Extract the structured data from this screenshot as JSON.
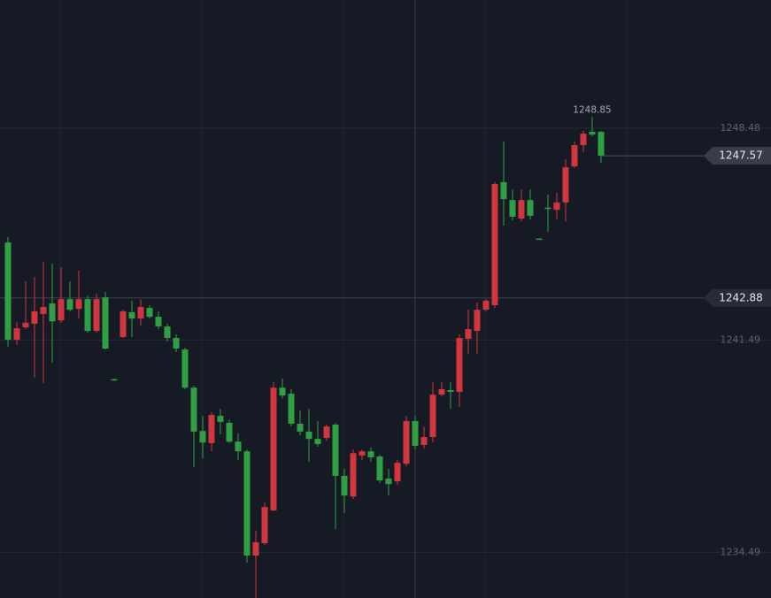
{
  "chart_data": {
    "type": "candlestick",
    "open": [
      1244.71,
      1241.5,
      1241.91,
      1242.03,
      1242.35,
      1242.7,
      1242.14,
      1242.84,
      1242.52,
      1242.84,
      1241.79,
      1242.9,
      1240.2,
      1241.59,
      1242.41,
      1242.2,
      1242.55,
      1242.26,
      1241.94,
      1241.56,
      1241.18,
      1239.92,
      1238.49,
      1238.09,
      1238.99,
      1238.76,
      1238.14,
      1237.82,
      1234.38,
      1234.79,
      1235.87,
      1239.92,
      1239.72,
      1238.73,
      1238.47,
      1238.23,
      1238.26,
      1238.7,
      1237.01,
      1236.33,
      1237.68,
      1237.82,
      1237.65,
      1236.92,
      1236.83,
      1237.41,
      1238.82,
      1238.03,
      1238.29,
      1239.69,
      1239.84,
      1239.78,
      1241.53,
      1241.79,
      1242.49,
      1242.64,
      1246.7,
      1246.11,
      1245.5,
      1246.11,
      1244.84,
      1245.86,
      1245.79,
      1246.03,
      1247.22,
      1247.92,
      1248.36,
      1248.36
    ],
    "high": [
      1244.89,
      1242.08,
      1243.43,
      1243.57,
      1244.07,
      1244.01,
      1243.89,
      1243.43,
      1243.78,
      1242.96,
      1243.02,
      1243.08,
      1240.22,
      1242.49,
      1242.79,
      1242.84,
      1242.64,
      1242.44,
      1242.03,
      1241.68,
      1241.24,
      1239.98,
      1238.99,
      1239.11,
      1239.22,
      1238.87,
      1238.41,
      1237.88,
      1235.2,
      1236.13,
      1240.1,
      1240.22,
      1239.87,
      1239.17,
      1239.22,
      1238.82,
      1238.7,
      1238.76,
      1237.24,
      1237.88,
      1237.88,
      1237.94,
      1237.71,
      1237.24,
      1237.53,
      1238.99,
      1238.99,
      1238.64,
      1240.1,
      1240.1,
      1240.1,
      1241.68,
      1242.49,
      1242.73,
      1242.84,
      1246.7,
      1248.04,
      1246.46,
      1246.46,
      1246.46,
      1244.85,
      1246.29,
      1246.35,
      1247.46,
      1248.04,
      1248.39,
      1248.85,
      1248.39
    ],
    "low": [
      1241.27,
      1241.33,
      1241.85,
      1240.25,
      1240.07,
      1240.74,
      1242.06,
      1242.44,
      1242.2,
      1241.73,
      1241.73,
      1241.18,
      1240.15,
      1241.56,
      1241.59,
      1241.97,
      1242.2,
      1241.85,
      1241.44,
      1241.09,
      1239.87,
      1237.3,
      1237.59,
      1237.82,
      1238.38,
      1238.09,
      1237.53,
      1234.15,
      1232.98,
      1234.73,
      1235.84,
      1239.57,
      1238.64,
      1238.35,
      1237.47,
      1237.97,
      1238.17,
      1235.25,
      1235.78,
      1236.25,
      1237.53,
      1237.47,
      1236.77,
      1236.36,
      1236.71,
      1237.33,
      1237.88,
      1237.91,
      1238.11,
      1239.63,
      1239.22,
      1239.28,
      1241.03,
      1241.03,
      1242.44,
      1242.55,
      1245.27,
      1245.44,
      1245.41,
      1245.47,
      1244.8,
      1245.06,
      1245.47,
      1245.41,
      1247.16,
      1247.69,
      1248.21,
      1247.34
    ],
    "close": [
      1241.5,
      1241.88,
      1242.06,
      1242.44,
      1242.58,
      1242.11,
      1242.84,
      1242.49,
      1242.84,
      1241.79,
      1242.84,
      1241.21,
      1240.17,
      1242.44,
      1242.2,
      1242.58,
      1242.26,
      1241.94,
      1241.56,
      1241.21,
      1239.92,
      1238.47,
      1238.11,
      1239.02,
      1238.79,
      1238.14,
      1237.82,
      1234.38,
      1234.82,
      1235.98,
      1239.92,
      1239.66,
      1238.73,
      1238.47,
      1238.23,
      1238.06,
      1238.64,
      1237.01,
      1236.36,
      1237.76,
      1237.82,
      1237.62,
      1236.86,
      1236.74,
      1237.44,
      1238.82,
      1238.0,
      1238.29,
      1239.69,
      1239.87,
      1239.78,
      1241.56,
      1241.85,
      1242.49,
      1242.79,
      1246.64,
      1246.14,
      1245.56,
      1246.11,
      1245.59,
      1244.81,
      1245.84,
      1246.03,
      1247.19,
      1247.92,
      1248.3,
      1248.27,
      1247.57
    ],
    "ylim": [
      1232.98,
      1252.71
    ],
    "yticks": [
      1234.49,
      1241.49,
      1248.48
    ],
    "up_color": "#d1353d",
    "down_color": "#2ea043",
    "grid": true,
    "crosshair_value": 1242.88
  }
}
